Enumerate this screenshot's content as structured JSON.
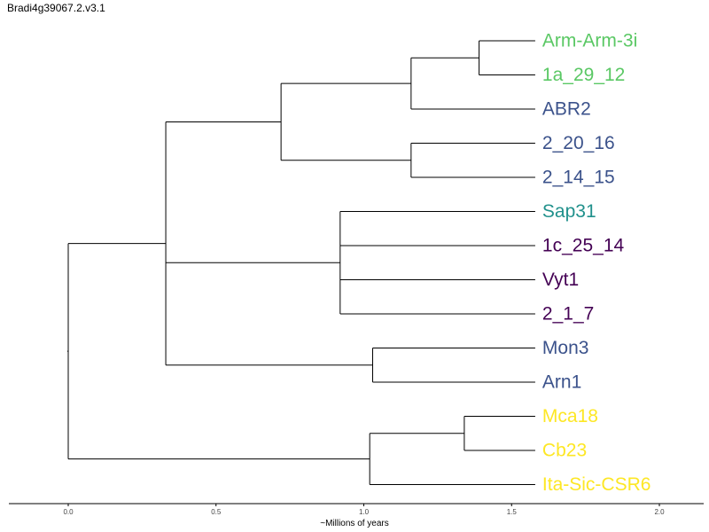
{
  "page": {
    "title": "Bradi4g39067.2.v3.1"
  },
  "chart_data": {
    "type": "dendrogram",
    "xlabel": "~Millions of years",
    "x_ticks": [
      "0.0",
      "0.5",
      "1.0",
      "1.5",
      "2.0"
    ],
    "xlim": [
      -0.2,
      2.15
    ],
    "leaves": [
      {
        "name": "Arm-Arm-3i",
        "color": "#5ac864"
      },
      {
        "name": "1a_29_12",
        "color": "#5ac864"
      },
      {
        "name": "ABR2",
        "color": "#3b528b"
      },
      {
        "name": "2_20_16",
        "color": "#3b528b"
      },
      {
        "name": "2_14_15",
        "color": "#3b528b"
      },
      {
        "name": "Sap31",
        "color": "#21918c"
      },
      {
        "name": "1c_25_14",
        "color": "#440154"
      },
      {
        "name": "Vyt1",
        "color": "#440154"
      },
      {
        "name": "2_1_7",
        "color": "#440154"
      },
      {
        "name": "Mon3",
        "color": "#3b528b"
      },
      {
        "name": "Arn1",
        "color": "#3b528b"
      },
      {
        "name": "Mca18",
        "color": "#fde725"
      },
      {
        "name": "Cb23",
        "color": "#fde725"
      },
      {
        "name": "Ita-Sic-CSR6",
        "color": "#fde725"
      }
    ],
    "tip_x": 1.58,
    "tree": {
      "x": 0.0,
      "children": [
        {
          "x": 0.33,
          "children": [
            {
              "x": 0.72,
              "children": [
                {
                  "x": 1.16,
                  "children": [
                    {
                      "x": 1.39,
                      "children": [
                        {
                          "leaf": 0
                        },
                        {
                          "leaf": 1
                        }
                      ]
                    },
                    {
                      "leaf": 2
                    }
                  ]
                },
                {
                  "x": 1.16,
                  "children": [
                    {
                      "leaf": 3
                    },
                    {
                      "leaf": 4
                    }
                  ]
                }
              ]
            },
            {
              "x": 0.92,
              "children": [
                {
                  "leaf": 5
                },
                {
                  "leaf": 6
                },
                {
                  "leaf": 7
                },
                {
                  "leaf": 8
                }
              ]
            },
            {
              "x": 1.03,
              "children": [
                {
                  "leaf": 9
                },
                {
                  "leaf": 10
                }
              ]
            }
          ]
        },
        {
          "x": 1.02,
          "children": [
            {
              "x": 1.34,
              "children": [
                {
                  "leaf": 11
                },
                {
                  "leaf": 12
                }
              ]
            },
            {
              "leaf": 13
            }
          ]
        }
      ]
    }
  }
}
